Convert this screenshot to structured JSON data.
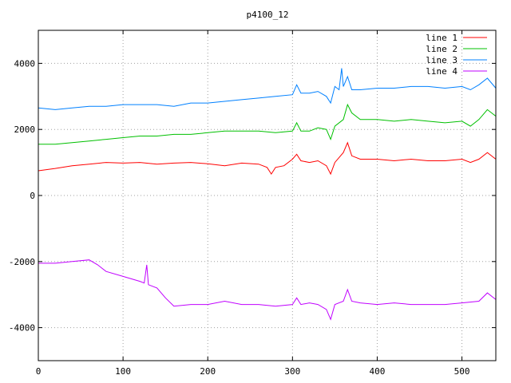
{
  "chart_data": {
    "type": "line",
    "title": "p4100_12",
    "xlim": [
      0,
      540
    ],
    "ylim": [
      -5000,
      5000
    ],
    "x_ticks": [
      0,
      100,
      200,
      300,
      400,
      500
    ],
    "y_ticks": [
      -4000,
      -2000,
      0,
      2000,
      4000
    ],
    "grid": true,
    "legend_position": "top-right",
    "series": [
      {
        "name": "line 1",
        "color": "#ff0000",
        "x": [
          0,
          20,
          40,
          60,
          80,
          100,
          120,
          140,
          160,
          180,
          200,
          220,
          240,
          260,
          270,
          275,
          280,
          290,
          300,
          305,
          310,
          320,
          330,
          340,
          345,
          350,
          355,
          360,
          365,
          370,
          380,
          400,
          420,
          440,
          460,
          480,
          500,
          510,
          520,
          530,
          540
        ],
        "y": [
          750,
          820,
          900,
          950,
          1000,
          980,
          1000,
          950,
          980,
          1000,
          960,
          900,
          980,
          950,
          850,
          650,
          850,
          900,
          1100,
          1250,
          1050,
          1000,
          1050,
          900,
          650,
          1000,
          1150,
          1300,
          1600,
          1200,
          1100,
          1100,
          1050,
          1100,
          1050,
          1050,
          1100,
          1000,
          1100,
          1300,
          1100
        ]
      },
      {
        "name": "line 2",
        "color": "#00c000",
        "x": [
          0,
          20,
          40,
          60,
          80,
          100,
          120,
          140,
          160,
          180,
          200,
          220,
          240,
          260,
          280,
          300,
          305,
          310,
          320,
          330,
          340,
          345,
          350,
          360,
          365,
          370,
          380,
          400,
          420,
          440,
          460,
          480,
          500,
          510,
          520,
          530,
          540
        ],
        "y": [
          1550,
          1550,
          1600,
          1650,
          1700,
          1750,
          1800,
          1800,
          1850,
          1850,
          1900,
          1950,
          1950,
          1950,
          1900,
          1950,
          2200,
          1950,
          1950,
          2050,
          2000,
          1700,
          2100,
          2300,
          2750,
          2500,
          2300,
          2300,
          2250,
          2300,
          2250,
          2200,
          2250,
          2100,
          2300,
          2600,
          2400
        ]
      },
      {
        "name": "line 3",
        "color": "#0080ff",
        "x": [
          0,
          20,
          40,
          60,
          80,
          100,
          120,
          140,
          160,
          180,
          200,
          220,
          240,
          260,
          280,
          300,
          305,
          310,
          320,
          330,
          340,
          345,
          350,
          355,
          358,
          360,
          365,
          370,
          380,
          400,
          420,
          440,
          460,
          480,
          500,
          510,
          520,
          530,
          540
        ],
        "y": [
          2650,
          2600,
          2650,
          2700,
          2700,
          2750,
          2750,
          2750,
          2700,
          2800,
          2800,
          2850,
          2900,
          2950,
          3000,
          3050,
          3350,
          3100,
          3100,
          3150,
          3000,
          2800,
          3300,
          3200,
          3850,
          3300,
          3600,
          3200,
          3200,
          3250,
          3250,
          3300,
          3300,
          3250,
          3300,
          3200,
          3350,
          3550,
          3250
        ]
      },
      {
        "name": "line 4",
        "color": "#c000ff",
        "x": [
          0,
          20,
          40,
          60,
          70,
          80,
          100,
          120,
          125,
          128,
          130,
          140,
          150,
          160,
          180,
          200,
          220,
          240,
          260,
          280,
          300,
          305,
          310,
          320,
          330,
          340,
          345,
          350,
          360,
          365,
          370,
          380,
          400,
          420,
          440,
          460,
          480,
          500,
          520,
          530,
          540
        ],
        "y": [
          -2050,
          -2050,
          -2000,
          -1950,
          -2100,
          -2300,
          -2450,
          -2600,
          -2650,
          -2100,
          -2700,
          -2800,
          -3100,
          -3350,
          -3300,
          -3300,
          -3200,
          -3300,
          -3300,
          -3350,
          -3300,
          -3100,
          -3300,
          -3250,
          -3300,
          -3450,
          -3750,
          -3300,
          -3200,
          -2850,
          -3200,
          -3250,
          -3300,
          -3250,
          -3300,
          -3300,
          -3300,
          -3250,
          -3200,
          -2950,
          -3150
        ]
      }
    ]
  }
}
